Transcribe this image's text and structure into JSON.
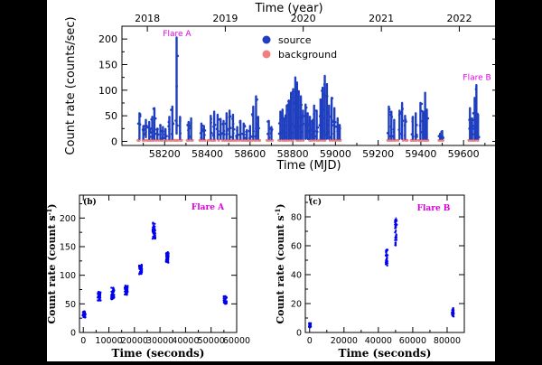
{
  "colors": {
    "source": "#1f3fbf",
    "background": "#f08080",
    "flare_label": "#e000e0",
    "bottom_points": "#0000ee",
    "figure_bg": "#ffffff",
    "page_bg": "#000000"
  },
  "chart_data": [
    {
      "type": "scatter",
      "panel_label": "",
      "title": "",
      "xlabel": "Time (MJD)",
      "ylabel": "Count rate (counts/sec)",
      "top_xlabel": "Time (year)",
      "xlim": [
        58000,
        59760
      ],
      "ylim": [
        -8,
        225
      ],
      "xticks": [
        58200,
        58400,
        58600,
        58800,
        59000,
        59200,
        59400,
        59600
      ],
      "yticks": [
        0,
        50,
        100,
        150,
        200
      ],
      "top_ticks": [
        {
          "label": "2018",
          "mjd": 58119
        },
        {
          "label": "2019",
          "mjd": 58484
        },
        {
          "label": "2020",
          "mjd": 58849
        },
        {
          "label": "2021",
          "mjd": 59215
        },
        {
          "label": "2022",
          "mjd": 59580
        }
      ],
      "legend": {
        "placement": "top-center",
        "entries": [
          "source",
          "background"
        ]
      },
      "annotations": [
        {
          "text": "Flare A",
          "x": 58258,
          "y": 206
        },
        {
          "text": "Flare B",
          "x": 59663,
          "y": 120
        }
      ],
      "series": [
        {
          "name": "source",
          "segments": [
            [
              58082,
              5,
              55
            ],
            [
              58100,
              5,
              30
            ],
            [
              58112,
              8,
              42
            ],
            [
              58128,
              5,
              38
            ],
            [
              58142,
              5,
              48
            ],
            [
              58152,
              5,
              65
            ],
            [
              58166,
              5,
              25
            ],
            [
              58180,
              5,
              32
            ],
            [
              58192,
              5,
              28
            ],
            [
              58204,
              5,
              24
            ],
            [
              58222,
              5,
              48
            ],
            [
              58236,
              5,
              68
            ],
            [
              58256,
              15,
              203
            ],
            [
              58272,
              5,
              48
            ],
            [
              58312,
              5,
              38
            ],
            [
              58324,
              5,
              45
            ],
            [
              58372,
              5,
              35
            ],
            [
              58384,
              5,
              30
            ],
            [
              58416,
              5,
              50
            ],
            [
              58432,
              5,
              58
            ],
            [
              58448,
              5,
              52
            ],
            [
              58462,
              5,
              44
            ],
            [
              58476,
              5,
              40
            ],
            [
              58490,
              5,
              55
            ],
            [
              58504,
              5,
              60
            ],
            [
              58520,
              5,
              52
            ],
            [
              58540,
              5,
              28
            ],
            [
              58555,
              5,
              40
            ],
            [
              58570,
              5,
              35
            ],
            [
              58585,
              5,
              22
            ],
            [
              58600,
              5,
              30
            ],
            [
              58615,
              5,
              68
            ],
            [
              58628,
              5,
              88
            ],
            [
              58638,
              5,
              48
            ],
            [
              58688,
              5,
              40
            ],
            [
              58700,
              5,
              28
            ],
            [
              58742,
              5,
              58
            ],
            [
              58752,
              5,
              62
            ],
            [
              58762,
              5,
              45
            ],
            [
              58772,
              5,
              70
            ],
            [
              58782,
              5,
              80
            ],
            [
              58792,
              5,
              95
            ],
            [
              58802,
              5,
              102
            ],
            [
              58812,
              5,
              125
            ],
            [
              58820,
              5,
              115
            ],
            [
              58828,
              5,
              98
            ],
            [
              58838,
              5,
              88
            ],
            [
              58848,
              5,
              60
            ],
            [
              58860,
              5,
              72
            ],
            [
              58870,
              5,
              55
            ],
            [
              58880,
              5,
              48
            ],
            [
              58890,
              5,
              40
            ],
            [
              58900,
              5,
              70
            ],
            [
              58912,
              5,
              60
            ],
            [
              58930,
              5,
              82
            ],
            [
              58940,
              5,
              105
            ],
            [
              58950,
              5,
              128
            ],
            [
              58960,
              5,
              112
            ],
            [
              58970,
              5,
              70
            ],
            [
              58982,
              5,
              85
            ],
            [
              58995,
              5,
              65
            ],
            [
              59010,
              5,
              45
            ],
            [
              59020,
              5,
              32
            ],
            [
              59250,
              5,
              68
            ],
            [
              59262,
              5,
              58
            ],
            [
              59275,
              5,
              42
            ],
            [
              59300,
              5,
              60
            ],
            [
              59312,
              5,
              75
            ],
            [
              59326,
              5,
              50
            ],
            [
              59362,
              5,
              48
            ],
            [
              59376,
              5,
              55
            ],
            [
              59398,
              5,
              75
            ],
            [
              59410,
              5,
              58
            ],
            [
              59420,
              5,
              95
            ],
            [
              59428,
              5,
              62
            ],
            [
              59490,
              5,
              15
            ],
            [
              59500,
              5,
              20
            ],
            [
              59630,
              5,
              65
            ],
            [
              59640,
              5,
              45
            ],
            [
              59652,
              5,
              85
            ],
            [
              59660,
              5,
              110
            ],
            [
              59668,
              5,
              52
            ]
          ]
        },
        {
          "name": "background",
          "ranges": [
            [
              58075,
              58280
            ],
            [
              58300,
              58330
            ],
            [
              58365,
              58390
            ],
            [
              58405,
              58650
            ],
            [
              58680,
              58705
            ],
            [
              58735,
              59025
            ],
            [
              59245,
              59335
            ],
            [
              59355,
              59435
            ],
            [
              59485,
              59505
            ],
            [
              59625,
              59672
            ]
          ],
          "y": 2
        }
      ]
    },
    {
      "type": "scatter",
      "panel_label": "(b)",
      "title": "Flare A",
      "xlabel": "Time (seconds)",
      "ylabel": "Count rate (count s",
      "ylabel_sup": "-1",
      "ylabel_close": ")",
      "xlim": [
        -1500,
        60000
      ],
      "ylim": [
        0,
        240
      ],
      "xticks": [
        0,
        10000,
        20000,
        30000,
        40000,
        50000,
        60000
      ],
      "yticks": [
        0,
        50,
        100,
        150,
        200
      ],
      "series": [
        {
          "name": "",
          "clusters": [
            [
              300,
              32,
              12
            ],
            [
              6200,
              63,
              17
            ],
            [
              11500,
              68,
              22
            ],
            [
              16800,
              74,
              16
            ],
            [
              22400,
              110,
              17
            ],
            [
              27600,
              178,
              29
            ],
            [
              32800,
              131,
              20
            ],
            [
              55500,
              57,
              15
            ]
          ]
        }
      ]
    },
    {
      "type": "scatter",
      "panel_label": "(c)",
      "title": "Flare B",
      "xlabel": "Time (seconds)",
      "ylabel": "Count rate (count s",
      "ylabel_sup": "-1",
      "ylabel_close": ")",
      "xlim": [
        -2500,
        90000
      ],
      "ylim": [
        0,
        95
      ],
      "xticks": [
        0,
        20000,
        40000,
        60000,
        80000
      ],
      "yticks": [
        0,
        20,
        40,
        60,
        80
      ],
      "series": [
        {
          "name": "",
          "clusters": [
            [
              200,
              5,
              3
            ],
            [
              44800,
              52,
              12
            ],
            [
              50200,
              70,
              20
            ],
            [
              83300,
              14,
              6
            ]
          ]
        }
      ]
    }
  ]
}
